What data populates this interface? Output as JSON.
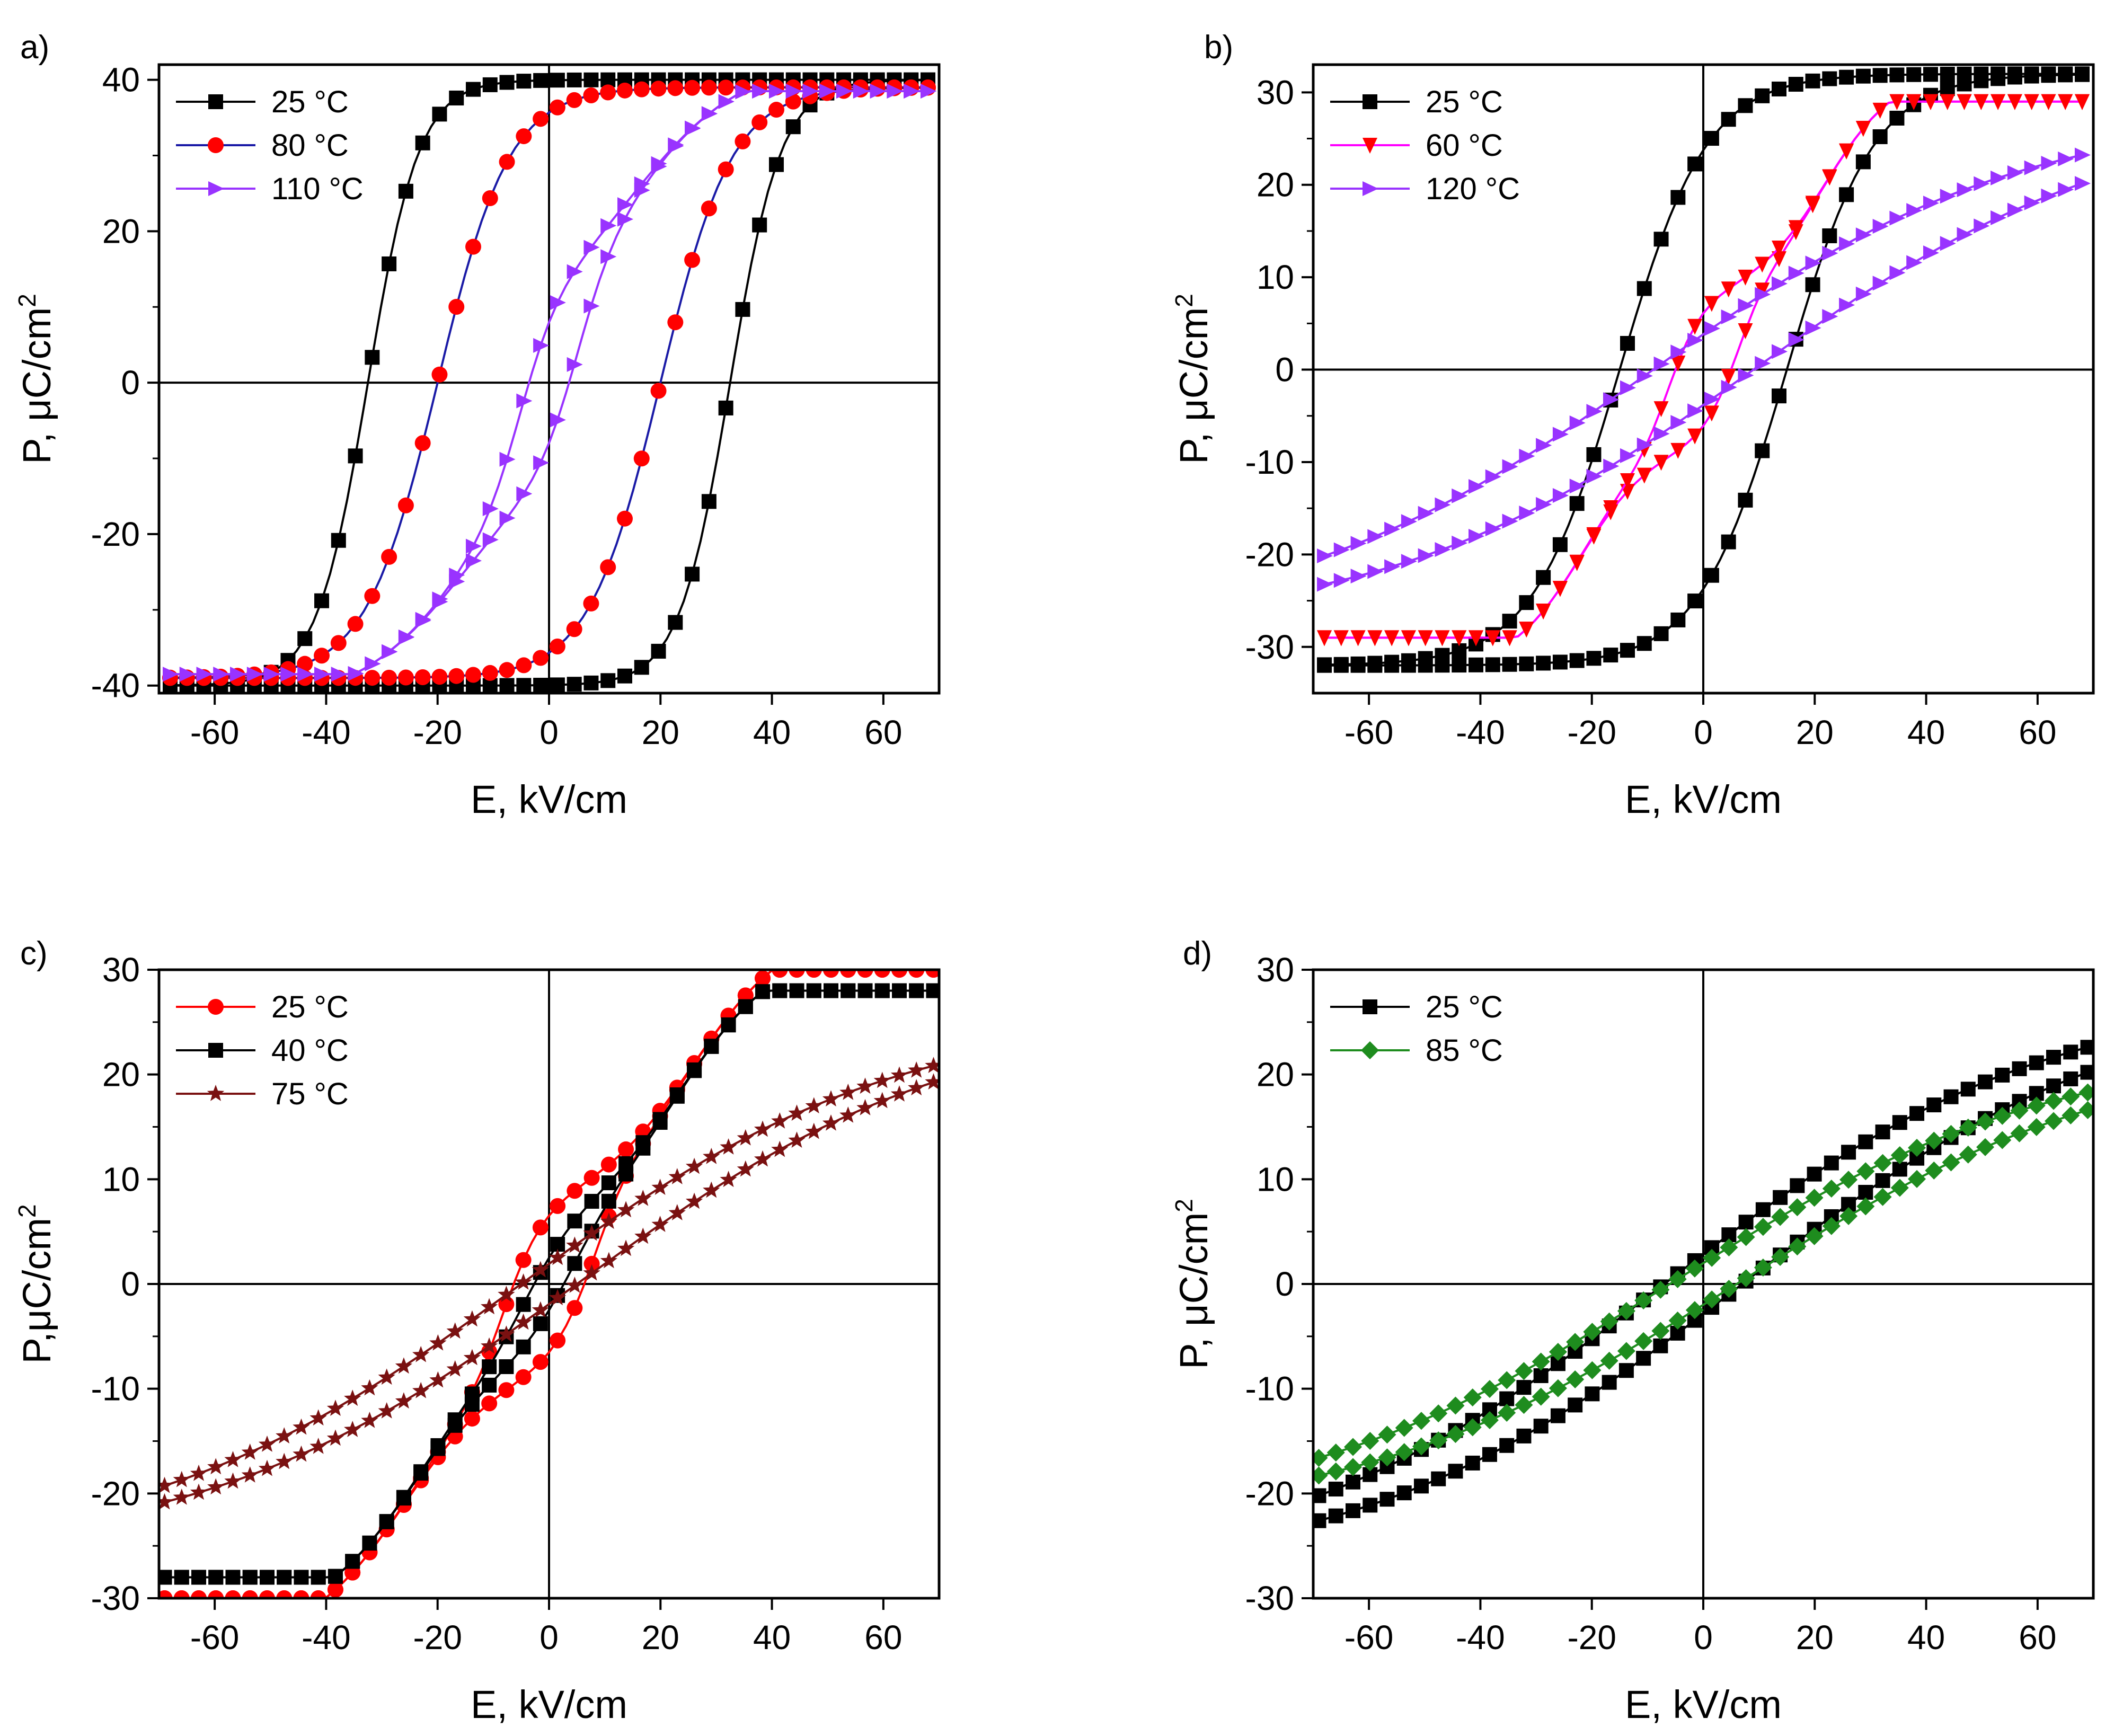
{
  "figure": {
    "xlabel": "E, kV/cm",
    "panels": [
      {
        "id": "a",
        "label": "a)",
        "ylabel": "P, μC/cm",
        "ylabel_sup": "2",
        "xlim": [
          -70,
          70
        ],
        "ylim": [
          -41,
          42
        ],
        "xticks": [
          -60,
          -40,
          -20,
          0,
          20,
          40,
          60
        ],
        "yticks": [
          -40,
          -20,
          0,
          20,
          40
        ]
      },
      {
        "id": "b",
        "label": "b)",
        "ylabel": "P, μC/cm",
        "ylabel_sup": "2",
        "xlim": [
          -70,
          70
        ],
        "ylim": [
          -35,
          33
        ],
        "xticks": [
          -60,
          -40,
          -20,
          0,
          20,
          40,
          60
        ],
        "yticks": [
          -30,
          -20,
          -10,
          0,
          10,
          20,
          30
        ]
      },
      {
        "id": "c",
        "label": "c)",
        "ylabel": "P,μC/cm",
        "ylabel_sup": "2",
        "xlim": [
          -70,
          70
        ],
        "ylim": [
          -30,
          30
        ],
        "xticks": [
          -60,
          -40,
          -20,
          0,
          20,
          40,
          60
        ],
        "yticks": [
          -30,
          -20,
          -10,
          0,
          10,
          20,
          30
        ]
      },
      {
        "id": "d",
        "label": "d)",
        "ylabel": "P, μC/cm",
        "ylabel_sup": "2",
        "xlim": [
          -70,
          70
        ],
        "ylim": [
          -30,
          30
        ],
        "xticks": [
          -60,
          -40,
          -20,
          0,
          20,
          40,
          60
        ],
        "yticks": [
          -30,
          -20,
          -10,
          0,
          10,
          20,
          30
        ]
      }
    ]
  },
  "chart_data": [
    {
      "type": "line",
      "panel": "a",
      "title": "",
      "xlabel": "E, kV/cm",
      "ylabel": "P, μC/cm2",
      "xlim": [
        -70,
        70
      ],
      "ylim": [
        -41,
        42
      ],
      "legend_position": "top-left",
      "series": [
        {
          "name": "25 °C",
          "color": "#000000",
          "marker": "square",
          "Emax": 68,
          "Ec": 32.5,
          "Ps": 40,
          "Pr": 32,
          "w": 3.2
        },
        {
          "name": "80 °C",
          "color": "#ff0000",
          "line_color": "#1a1aa6",
          "marker": "circle",
          "Emax": 68,
          "Ec": 20,
          "Ps": 39,
          "Pr": 27,
          "w": 4.5
        },
        {
          "name": "110 °C",
          "color": "#9933ff",
          "marker": "triangle-right",
          "Emax": 68,
          "Ec": 5,
          "Ps": 38.5,
          "Pr": 4,
          "w": 2.5,
          "type": "double-loop",
          "Eb": 17,
          "Ef": 7,
          "Pmid": 13,
          "Es": 17
        }
      ]
    },
    {
      "type": "line",
      "panel": "b",
      "title": "",
      "xlabel": "E, kV/cm",
      "ylabel": "P, μC/cm2",
      "xlim": [
        -70,
        70
      ],
      "ylim": [
        -35,
        33
      ],
      "legend_position": "top-left",
      "series": [
        {
          "name": "25 °C",
          "color": "#000000",
          "marker": "square",
          "Emax": 68,
          "Ec": 15,
          "Ps": 32,
          "Pr": 20,
          "w": 5.5
        },
        {
          "name": "60 °C",
          "color": "#ff0000",
          "line_color": "#ff00ff",
          "marker": "triangle-down",
          "Emax": 68,
          "Ec": 6,
          "Ps": 29,
          "Pr": 4,
          "w": 2.5,
          "type": "double-loop",
          "Eb": 22,
          "Ef": 6,
          "Pmid": 8,
          "Es": 12
        },
        {
          "name": "120 °C",
          "color": "#9933ff",
          "marker": "triangle-right",
          "Emax": 68,
          "Ec": 9,
          "Ps": 28,
          "Pr": 3.5,
          "w": 4,
          "type": "slim",
          "slope": 0.42,
          "k": 0.3
        }
      ]
    },
    {
      "type": "line",
      "panel": "c",
      "title": "",
      "xlabel": "E, kV/cm",
      "ylabel": "P,μC/cm2",
      "xlim": [
        -70,
        70
      ],
      "ylim": [
        -30,
        30
      ],
      "legend_position": "top-left",
      "series": [
        {
          "name": "25 °C",
          "color": "#ff0000",
          "marker": "circle",
          "Emax": 69,
          "Ec": 8,
          "Ps": 30,
          "Pr": 5,
          "w": 3,
          "type": "double-loop",
          "Eb": 26,
          "Ef": 7,
          "Pmid": 8,
          "Es": 16
        },
        {
          "name": "40 °C",
          "color": "#000000",
          "marker": "square",
          "Emax": 69,
          "Ec": 4,
          "Ps": 28,
          "Pr": 3,
          "w": 5,
          "type": "double-loop",
          "Eb": 24,
          "Ef": 9,
          "Pmid": 6,
          "Es": 16
        },
        {
          "name": "75 °C",
          "color": "#7a1111",
          "marker": "star",
          "Emax": 69,
          "Ec": 5,
          "Ps": 26,
          "Pr": 2,
          "w": 6,
          "type": "slim",
          "slope": 0.38,
          "k": 0.2
        }
      ]
    },
    {
      "type": "line",
      "panel": "d",
      "title": "",
      "xlabel": "E, kV/cm",
      "ylabel": "P, μC/cm2",
      "xlim": [
        -70,
        70
      ],
      "ylim": [
        -30,
        30
      ],
      "legend_position": "top-left",
      "series": [
        {
          "name": "25 °C",
          "color": "#000000",
          "marker": "square",
          "Emax": 69,
          "Ec": 7,
          "Ps": 28,
          "Pr": 3,
          "w": 6,
          "type": "slim",
          "slope": 0.4,
          "k": 0.35
        },
        {
          "name": "85 °C",
          "color": "#1e8c1e",
          "marker": "diamond",
          "Emax": 69,
          "Ec": 6,
          "Ps": 23,
          "Pr": 1.5,
          "w": 6,
          "type": "slim",
          "slope": 0.33,
          "k": 0.08
        }
      ]
    }
  ]
}
